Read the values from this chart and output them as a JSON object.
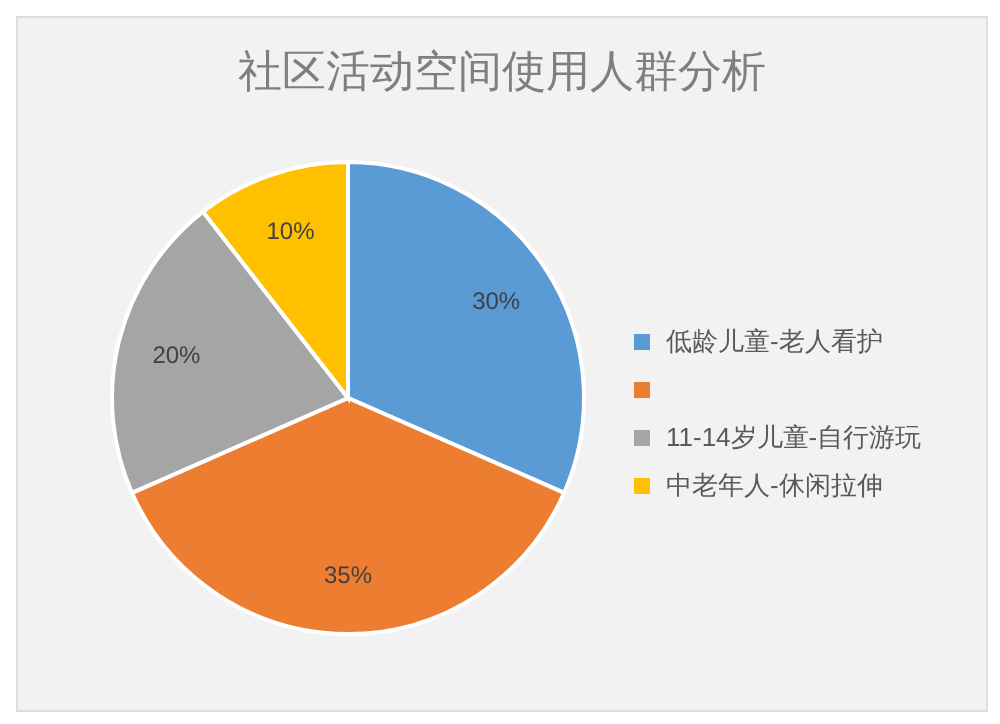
{
  "chart_data": {
    "type": "pie",
    "title": "社区活动空间使用人群分析",
    "categories": [
      "低龄儿童-老人看护",
      null,
      "11-14岁儿童-自行游玩",
      "中老年人-休闲拉伸"
    ],
    "values": [
      30,
      35,
      20,
      10
    ],
    "colors": [
      "#5b9bd5",
      "#ed7d31",
      "#a5a5a5",
      "#ffc000"
    ],
    "value_labels": [
      "30%",
      "35%",
      "20%",
      "10%"
    ],
    "legend": "right"
  }
}
